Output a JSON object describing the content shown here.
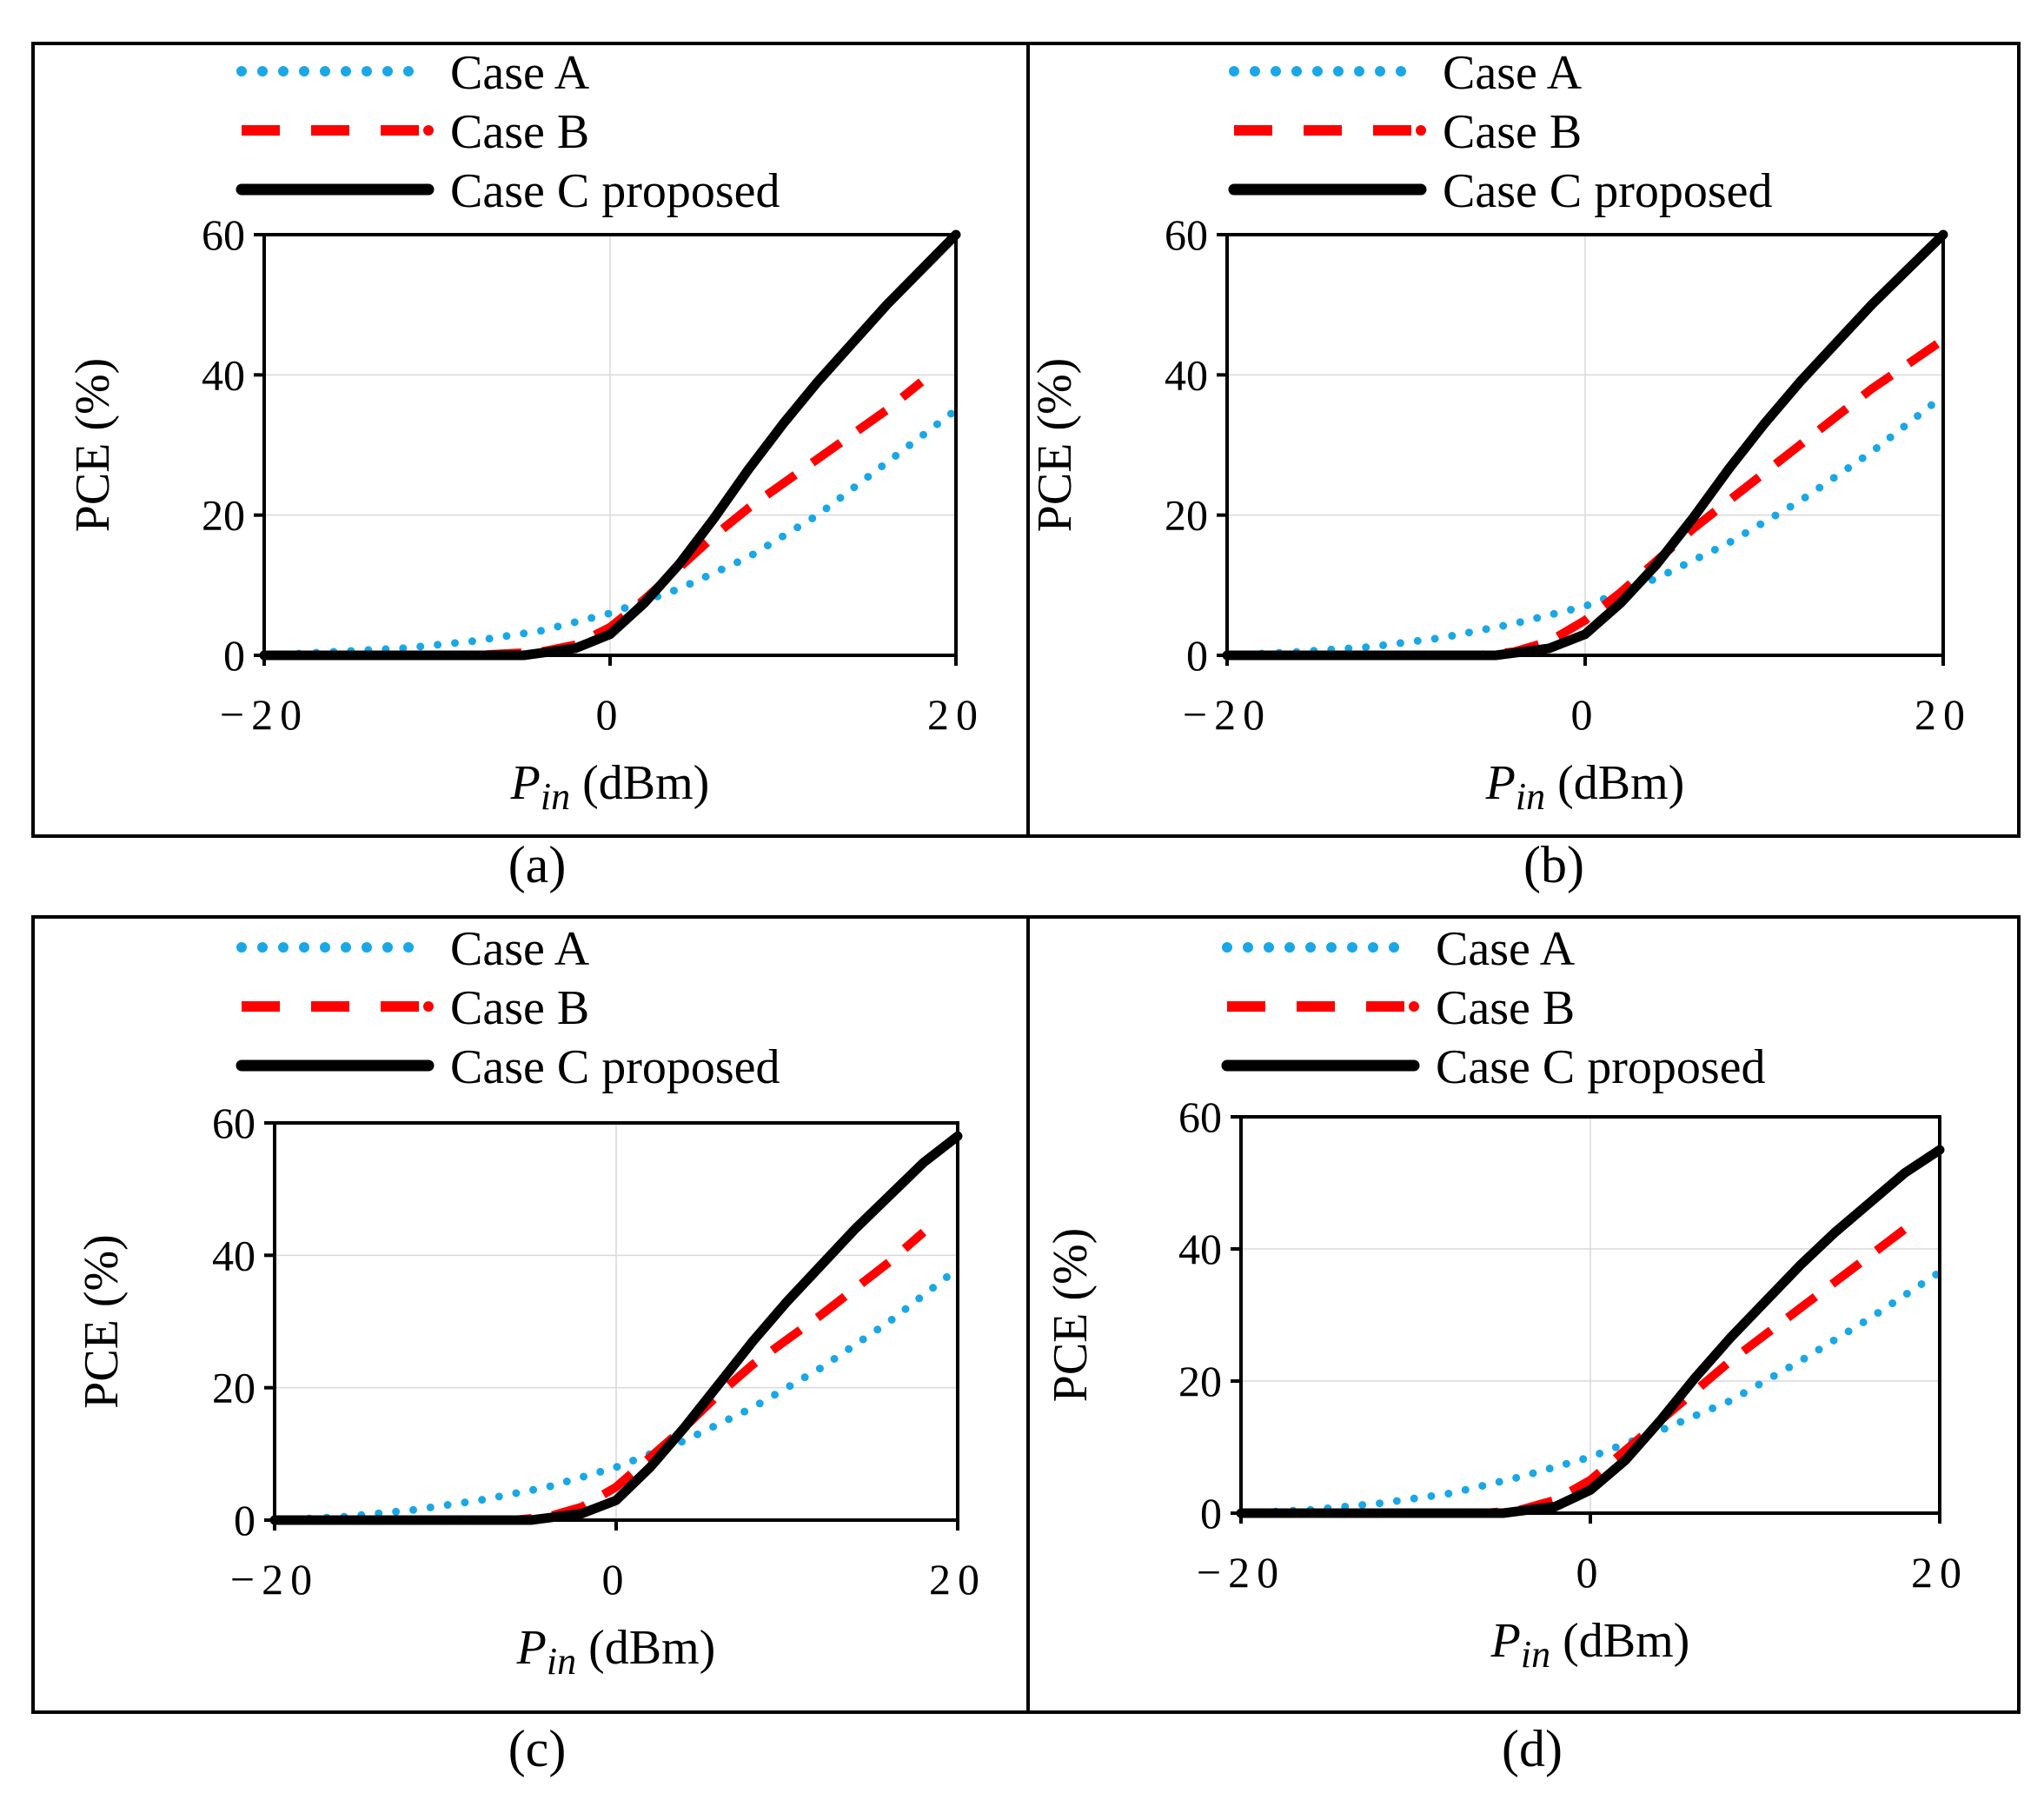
{
  "chart_data": [
    {
      "type": "line",
      "panel_label": "(a)",
      "xlabel_main": "P",
      "xlabel_sub": "in",
      "xlabel_unit": " (dBm)",
      "ylabel": "PCE (%)",
      "xlim": [
        -20,
        20
      ],
      "ylim": [
        0,
        60
      ],
      "xticks": [
        "−20",
        "0",
        "20"
      ],
      "yticks": [
        "0",
        "20",
        "40",
        "60"
      ],
      "legend": [
        "Case A",
        "Case B",
        "Case C proposed"
      ],
      "series": [
        {
          "name": "Case A",
          "style": "dotted",
          "color": "#1aa7e6",
          "x": [
            -20,
            -16,
            -12,
            -8,
            -4,
            0,
            4,
            8,
            12,
            16,
            20
          ],
          "y": [
            0,
            0.5,
            1.0,
            2.0,
            3.5,
            6.0,
            9.5,
            14.0,
            20.0,
            27.5,
            35.0
          ]
        },
        {
          "name": "Case B",
          "style": "dashed",
          "color": "#ff0000",
          "x": [
            -20,
            -8,
            -4,
            -2,
            0,
            2,
            4,
            6,
            8,
            12,
            16,
            18
          ],
          "y": [
            0,
            0,
            0.5,
            1.5,
            4.0,
            8.0,
            12.5,
            17.0,
            21.0,
            28.0,
            35.0,
            39.0
          ]
        },
        {
          "name": "Case C proposed",
          "style": "solid",
          "color": "#000000",
          "x": [
            -20,
            -5,
            -2,
            0,
            2,
            4,
            6,
            8,
            10,
            12,
            14,
            16,
            18,
            20
          ],
          "y": [
            0,
            0,
            1.0,
            3.0,
            7.5,
            13.0,
            19.5,
            26.5,
            33.0,
            39.0,
            44.5,
            50.0,
            55.0,
            60.0
          ]
        }
      ]
    },
    {
      "type": "line",
      "panel_label": "(b)",
      "xlabel_main": "P",
      "xlabel_sub": "in",
      "xlabel_unit": " (dBm)",
      "ylabel": "PCE (%)",
      "xlim": [
        -20,
        20
      ],
      "ylim": [
        0,
        60
      ],
      "xticks": [
        "−20",
        "0",
        "20"
      ],
      "yticks": [
        "0",
        "20",
        "40",
        "60"
      ],
      "legend": [
        "Case A",
        "Case B",
        "Case C proposed"
      ],
      "series": [
        {
          "name": "Case A",
          "style": "dotted",
          "color": "#1aa7e6",
          "x": [
            -20,
            -16,
            -12,
            -8,
            -4,
            0,
            4,
            8,
            12,
            16,
            20
          ],
          "y": [
            0,
            0.5,
            1.2,
            2.5,
            4.5,
            7.0,
            11.0,
            16.0,
            22.0,
            29.0,
            37.0
          ]
        },
        {
          "name": "Case B",
          "style": "dashed",
          "color": "#ff0000",
          "x": [
            -20,
            -6,
            -4,
            -2,
            0,
            2,
            4,
            6,
            8,
            12,
            16,
            20
          ],
          "y": [
            0,
            0,
            0.5,
            2.0,
            5.0,
            9.0,
            13.5,
            18.0,
            22.0,
            30.0,
            38.0,
            45.0
          ]
        },
        {
          "name": "Case C proposed",
          "style": "solid",
          "color": "#000000",
          "x": [
            -20,
            -5,
            -2,
            0,
            2,
            4,
            6,
            8,
            10,
            12,
            14,
            16,
            18,
            20
          ],
          "y": [
            0,
            0,
            1.0,
            3.0,
            7.5,
            13.0,
            19.5,
            26.5,
            33.0,
            39.0,
            44.5,
            50.0,
            55.0,
            60.0
          ]
        }
      ]
    },
    {
      "type": "line",
      "panel_label": "(c)",
      "xlabel_main": "P",
      "xlabel_sub": "in",
      "xlabel_unit": " (dBm)",
      "ylabel": "PCE (%)",
      "xlim": [
        -20,
        20
      ],
      "ylim": [
        0,
        60
      ],
      "xticks": [
        "−20",
        "0",
        "20"
      ],
      "yticks": [
        "0",
        "20",
        "40",
        "60"
      ],
      "legend": [
        "Case A",
        "Case B",
        "Case C proposed"
      ],
      "series": [
        {
          "name": "Case A",
          "style": "dotted",
          "color": "#1aa7e6",
          "x": [
            -20,
            -16,
            -12,
            -8,
            -4,
            0,
            4,
            8,
            12,
            16,
            20
          ],
          "y": [
            0,
            0.5,
            1.5,
            3.0,
            5.0,
            8.0,
            12.0,
            17.0,
            23.0,
            30.0,
            38.0
          ]
        },
        {
          "name": "Case B",
          "style": "dashed",
          "color": "#ff0000",
          "x": [
            -20,
            -6,
            -4,
            -2,
            0,
            2,
            4,
            6,
            8,
            12,
            16,
            18
          ],
          "y": [
            0,
            0,
            0.5,
            2.0,
            5.0,
            9.5,
            14.0,
            19.0,
            23.5,
            31.0,
            39.0,
            43.5
          ]
        },
        {
          "name": "Case C proposed",
          "style": "solid",
          "color": "#000000",
          "x": [
            -20,
            -5,
            -2,
            0,
            2,
            4,
            6,
            8,
            10,
            12,
            14,
            16,
            18,
            20
          ],
          "y": [
            0,
            0,
            1.0,
            3.0,
            8.0,
            14.0,
            20.5,
            27.0,
            33.0,
            38.5,
            44.0,
            49.0,
            54.0,
            58.0
          ]
        }
      ]
    },
    {
      "type": "line",
      "panel_label": "(d)",
      "xlabel_main": "P",
      "xlabel_sub": "in",
      "xlabel_unit": " (dBm)",
      "ylabel": "PCE (%)",
      "xlim": [
        -20,
        20
      ],
      "ylim": [
        0,
        60
      ],
      "xticks": [
        "−20",
        "0",
        "20"
      ],
      "yticks": [
        "0",
        "20",
        "40",
        "60"
      ],
      "legend": [
        "Case A",
        "Case B",
        "Case C proposed"
      ],
      "series": [
        {
          "name": "Case A",
          "style": "dotted",
          "color": "#1aa7e6",
          "x": [
            -20,
            -16,
            -12,
            -8,
            -4,
            0,
            4,
            8,
            12,
            16,
            20
          ],
          "y": [
            0,
            0.5,
            1.5,
            3.0,
            5.5,
            8.5,
            12.5,
            17.0,
            23.0,
            29.5,
            36.5
          ]
        },
        {
          "name": "Case B",
          "style": "dashed",
          "color": "#ff0000",
          "x": [
            -20,
            -6,
            -4,
            -2,
            0,
            2,
            4,
            6,
            8,
            12,
            16,
            18
          ],
          "y": [
            0,
            0,
            0.5,
            2.0,
            5.0,
            9.5,
            14.0,
            18.5,
            23.0,
            31.0,
            39.0,
            43.0
          ]
        },
        {
          "name": "Case C proposed",
          "style": "solid",
          "color": "#000000",
          "x": [
            -20,
            -5,
            -2,
            0,
            2,
            4,
            6,
            8,
            10,
            12,
            14,
            16,
            18,
            20
          ],
          "y": [
            0,
            0,
            1.0,
            3.5,
            8.0,
            14.0,
            20.5,
            26.5,
            32.0,
            37.5,
            42.5,
            47.0,
            51.5,
            55.0
          ]
        }
      ]
    }
  ]
}
